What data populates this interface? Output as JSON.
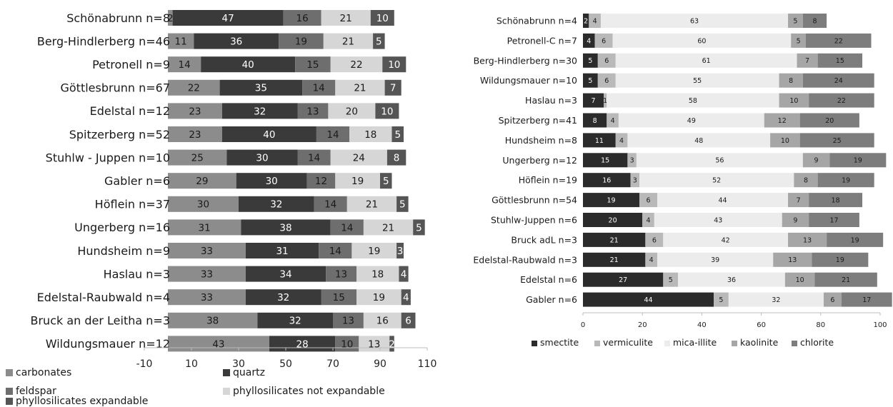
{
  "chart_data": [
    {
      "type": "bar",
      "orientation": "horizontal",
      "stacked": true,
      "categories": [
        "Schönabrunn n=8",
        "Berg-Hindlerberg n=46",
        "Petronell n=9",
        "Göttlesbrunn n=67",
        "Edelstal n=12",
        "Spitzerberg n=52",
        "Stuhlw - Juppen n=10",
        "Gabler n=6",
        "Höflein n=37",
        "Ungerberg n=16",
        "Hundsheim n=9",
        "Haslau n=3",
        "Edelstal-Raubwald n=4",
        "Bruck an der Leitha n=3",
        "Wildungsmauer n=12"
      ],
      "series": [
        {
          "name": "carbonates",
          "color": "#8c8c8c",
          "values": [
            2,
            11,
            14,
            22,
            23,
            23,
            25,
            29,
            30,
            31,
            33,
            33,
            33,
            38,
            43
          ]
        },
        {
          "name": "quartz",
          "color": "#3a3a3a",
          "values": [
            47,
            36,
            40,
            35,
            32,
            40,
            30,
            30,
            32,
            38,
            31,
            34,
            32,
            32,
            28
          ]
        },
        {
          "name": "feldspar",
          "color": "#6e6e6e",
          "values": [
            16,
            19,
            15,
            14,
            13,
            14,
            14,
            12,
            14,
            14,
            14,
            13,
            15,
            13,
            10
          ]
        },
        {
          "name": "phyllosilicates not expandable",
          "color": "#d6d6d6",
          "values": [
            21,
            21,
            22,
            21,
            20,
            18,
            24,
            19,
            21,
            21,
            19,
            18,
            19,
            16,
            13
          ]
        },
        {
          "name": "phyllosilicates expandable",
          "color": "#555555",
          "values": [
            10,
            5,
            10,
            7,
            10,
            5,
            8,
            5,
            5,
            5,
            3,
            4,
            4,
            6,
            2
          ]
        }
      ],
      "xlim": [
        -10,
        110
      ],
      "xticks": [
        -10,
        10,
        30,
        50,
        70,
        90,
        110
      ],
      "legend": "bottom",
      "grid": false
    },
    {
      "type": "bar",
      "orientation": "horizontal",
      "stacked": true,
      "categories": [
        "Schönabrunn n=4",
        "Petronell-C n=7",
        "Berg-Hindlerberg n=30",
        "Wildungsmauer n=10",
        "Haslau n=3",
        "Spitzerberg n=41",
        "Hundsheim n=8",
        "Ungerberg n=12",
        "Höflein n=19",
        "Göttlesbrunn n=54",
        "Stuhlw-Juppen n=6",
        "Bruck adL n=3",
        "Edelstal-Raubwald n=3",
        "Edelstal n=6",
        "Gabler n=6"
      ],
      "series": [
        {
          "name": "smectite",
          "color": "#2b2b2b",
          "values": [
            2,
            4,
            5,
            5,
            7,
            8,
            11,
            15,
            16,
            19,
            20,
            21,
            21,
            27,
            44
          ]
        },
        {
          "name": "vermiculite",
          "color": "#b9b9b9",
          "values": [
            4,
            6,
            6,
            6,
            1,
            4,
            4,
            3,
            3,
            6,
            4,
            6,
            4,
            5,
            5
          ]
        },
        {
          "name": "mica-illite",
          "color": "#ececec",
          "values": [
            63,
            60,
            61,
            55,
            58,
            49,
            48,
            56,
            52,
            44,
            43,
            42,
            39,
            36,
            32
          ]
        },
        {
          "name": "kaolinite",
          "color": "#a6a6a6",
          "values": [
            5,
            5,
            7,
            8,
            10,
            12,
            10,
            9,
            8,
            7,
            9,
            13,
            13,
            10,
            6
          ]
        },
        {
          "name": "chlorite",
          "color": "#7d7d7d",
          "values": [
            8,
            22,
            15,
            24,
            22,
            20,
            25,
            19,
            19,
            18,
            17,
            19,
            19,
            21,
            17
          ]
        }
      ],
      "xlim": [
        0,
        100
      ],
      "xticks": [
        0,
        20,
        40,
        60,
        80,
        100
      ],
      "legend": "bottom",
      "grid": false
    }
  ]
}
